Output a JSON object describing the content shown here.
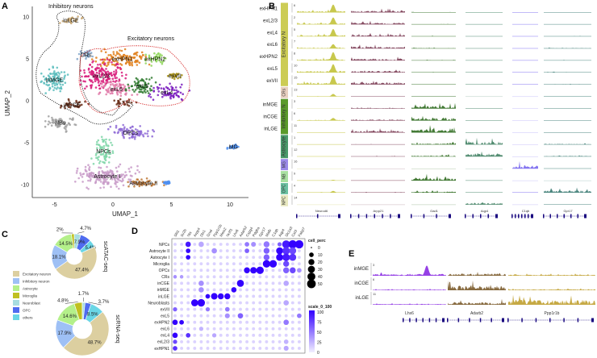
{
  "panels": {
    "a": "A",
    "b": "B",
    "c": "C",
    "d": "D",
    "e": "E"
  },
  "chart_data": [
    {
      "type": "scatter",
      "panel": "A",
      "xlabel": "UMAP_1",
      "ylabel": "UMAP_2",
      "xlim": [
        -7,
        11.5
      ],
      "ylim": [
        -11.5,
        11
      ],
      "xticks": [
        "-5",
        "0",
        "5",
        "10"
      ],
      "yticks": [
        "10",
        "5",
        "0",
        "-5",
        "-10"
      ],
      "annotations": {
        "inhibitory": "Inhibitory neurons",
        "excitatory": "Excitatory neurons"
      },
      "clusters": [
        {
          "name": "inLGE",
          "color": "#c8a66f",
          "x": -3.6,
          "y": 9.6,
          "sx": 0.8,
          "sy": 0.5,
          "label": "inLGE"
        },
        {
          "name": "CRs",
          "color": "#7fa3c8",
          "x": -2.3,
          "y": 5.5,
          "sx": 0.6,
          "sy": 0.4,
          "label": "CRs"
        },
        {
          "name": "exHPN1",
          "color": "#e07f1a",
          "x": 0.8,
          "y": 5.0,
          "sx": 2.0,
          "sy": 1.0,
          "label": "exHPN1"
        },
        {
          "name": "exHPN2",
          "color": "#8fd65a",
          "x": 3.6,
          "y": 5.0,
          "sx": 1.0,
          "sy": 0.7,
          "label": "exHPN2"
        },
        {
          "name": "exVII",
          "color": "#a8900f",
          "x": 5.3,
          "y": 3.0,
          "sx": 0.5,
          "sy": 0.4,
          "label": "exVII"
        },
        {
          "name": "exL2/3",
          "color": "#d81b7a",
          "x": -1.0,
          "y": 3.0,
          "sx": 1.8,
          "sy": 1.5,
          "label": "exL2/3"
        },
        {
          "name": "exL6",
          "color": "#e07aa8",
          "x": 0.3,
          "y": 1.4,
          "sx": 1.3,
          "sy": 1.0,
          "label": "exL6"
        },
        {
          "name": "exL5",
          "color": "#2f7a2f",
          "x": 2.5,
          "y": 1.8,
          "sx": 1.2,
          "sy": 0.9,
          "label": "exL5"
        },
        {
          "name": "exL4",
          "color": "#7b1fc0",
          "x": 4.6,
          "y": 1.0,
          "sx": 1.5,
          "sy": 0.8,
          "label": "exL4"
        },
        {
          "name": "inMGE",
          "color": "#5bbdbd",
          "x": -5.0,
          "y": 2.5,
          "sx": 1.1,
          "sy": 1.5,
          "label": "inMGE"
        },
        {
          "name": "inCGE",
          "color": "#6b2f1a",
          "x": -3.5,
          "y": -0.5,
          "sx": 1.2,
          "sy": 0.5,
          "label": "inCGE"
        },
        {
          "name": "inCGE-2",
          "color": "#6b2f1a",
          "x": 0.8,
          "y": -0.2,
          "sx": 0.9,
          "sy": 0.4,
          "label": ""
        },
        {
          "name": "NBs",
          "color": "#a0a0a0",
          "x": -4.5,
          "y": -2.6,
          "sx": 1.2,
          "sy": 0.8,
          "label": "NBs"
        },
        {
          "name": "OPCs",
          "color": "#8e6ad6",
          "x": 1.5,
          "y": -3.8,
          "sx": 1.7,
          "sy": 0.8,
          "label": "OPCs"
        },
        {
          "name": "NPCs",
          "color": "#7fd6a8",
          "x": -0.8,
          "y": -6.0,
          "sx": 0.8,
          "sy": 1.5,
          "label": "NPCs"
        },
        {
          "name": "Astrocyte I",
          "color": "#c89ac8",
          "x": -0.5,
          "y": -9.0,
          "sx": 2.5,
          "sy": 1.2,
          "label": "Astrocyte I"
        },
        {
          "name": "Astrocyte II",
          "color": "#c07a3a",
          "x": 2.6,
          "y": -9.8,
          "sx": 1.5,
          "sy": 0.5,
          "label": "Astrocyte II"
        },
        {
          "name": "MG",
          "color": "#4f8fef",
          "x": 10.3,
          "y": -5.5,
          "sx": 0.5,
          "sy": 0.3,
          "label": "MG"
        },
        {
          "name": "MG-2",
          "color": "#4f8fef",
          "x": 4.6,
          "y": -9.8,
          "sx": 0.3,
          "sy": 0.2,
          "label": ""
        }
      ]
    },
    {
      "type": "area",
      "panel": "B",
      "genes": [
        "Neurod6",
        "Arpp21",
        "Gad1",
        "Aqp4",
        "C1qb",
        "Gpr17"
      ],
      "gene_colors": [
        "#c2c23a",
        "#7a3a52",
        "#2e6a1e",
        "#3f7f62",
        "#7766ee",
        "#3a7a72"
      ],
      "groups": [
        {
          "label": "Excitatory N",
          "color": "#cccc55",
          "tracks": 7
        },
        {
          "label": "CRs",
          "color": "#e8cfc0",
          "tracks": 1
        },
        {
          "label": "Inhibitory N",
          "color": "#5a9a2a",
          "tracks": 3
        },
        {
          "label": "Astrocyte",
          "color": "#4a9a6a",
          "tracks": 2
        },
        {
          "label": "MG",
          "color": "#9a8ae8",
          "tracks": 1
        },
        {
          "label": "NB",
          "color": "#a8e0a0",
          "tracks": 1
        },
        {
          "label": "OPC",
          "color": "#6ac0a0",
          "tracks": 1
        },
        {
          "label": "NPC",
          "color": "#e8e8c0",
          "tracks": 1
        }
      ],
      "tracks": [
        {
          "name": "exHPN1",
          "scale": "6",
          "levels": [
            0.9,
            0.5,
            0.1,
            0.02,
            0.02,
            0.05
          ]
        },
        {
          "name": "exL2/3",
          "scale": "2",
          "levels": [
            0.8,
            0.45,
            0.1,
            0.03,
            0.02,
            0.05
          ]
        },
        {
          "name": "exL4",
          "scale": "5",
          "levels": [
            0.85,
            0.4,
            0.1,
            0.02,
            0.02,
            0.08
          ]
        },
        {
          "name": "exL6",
          "scale": "7",
          "levels": [
            0.5,
            0.5,
            0.15,
            0.02,
            0.05,
            0.15
          ]
        },
        {
          "name": "exHPN2",
          "scale": "8",
          "levels": [
            0.95,
            0.45,
            0.08,
            0.02,
            0.02,
            0.1
          ]
        },
        {
          "name": "exL5",
          "scale": "10",
          "levels": [
            0.95,
            0.45,
            0.08,
            0.02,
            0.02,
            0.1
          ]
        },
        {
          "name": "exVII",
          "scale": "15",
          "levels": [
            1.0,
            0.55,
            0.05,
            0.02,
            0.02,
            0.12
          ]
        },
        {
          "name": "",
          "scale": "13",
          "levels": [
            0.3,
            0.05,
            0.05,
            0.0,
            0.0,
            0.02
          ]
        },
        {
          "name": "inMGE",
          "scale": "3",
          "levels": [
            0.0,
            0.15,
            0.7,
            0.02,
            0.0,
            0.02
          ]
        },
        {
          "name": "inCGE",
          "scale": "6",
          "levels": [
            0.3,
            0.3,
            0.75,
            0.02,
            0.0,
            0.02
          ]
        },
        {
          "name": "inLGE",
          "scale": "11",
          "levels": [
            0.02,
            0.5,
            0.95,
            0.02,
            0.0,
            0.02
          ]
        },
        {
          "name": "",
          "scale": "1",
          "levels": [
            0.02,
            0.1,
            0.3,
            0.85,
            0.0,
            0.2
          ]
        },
        {
          "name": "",
          "scale": "12",
          "levels": [
            0.02,
            0.1,
            0.3,
            0.85,
            0.0,
            0.2
          ]
        },
        {
          "name": "",
          "scale": "16",
          "levels": [
            0.0,
            0.0,
            0.0,
            0.0,
            0.9,
            0.05
          ]
        },
        {
          "name": "",
          "scale": "9",
          "levels": [
            0.1,
            0.05,
            0.8,
            0.05,
            0.0,
            0.0
          ]
        },
        {
          "name": "",
          "scale": "4",
          "levels": [
            0.2,
            0.1,
            0.3,
            0.05,
            0.05,
            0.6
          ]
        },
        {
          "name": "",
          "scale": "14",
          "levels": [
            0.0,
            0.0,
            0.0,
            0.5,
            0.0,
            0.05
          ]
        }
      ]
    },
    {
      "type": "pie",
      "panel": "C",
      "legend": [
        "Excitatory neuron",
        "Inhibitory neuron",
        "Astrocyte",
        "Microglia",
        "Neuroblast",
        "OPC",
        "others"
      ],
      "colors": [
        "#dccfa0",
        "#9ec0f5",
        "#b4f08a",
        "#c0c020",
        "#a8dde0",
        "#4f6cf0",
        "#6ad6e6"
      ],
      "donuts": [
        {
          "title": "scATAC-seq",
          "values": {
            "Excitatory neuron": 47.4,
            "Inhibitory neuron": 18.1,
            "Astrocyte": 14.5,
            "Microglia": 2,
            "Neuroblast": 4.7,
            "OPC": 7.9,
            "others": 5.4
          },
          "labels": {
            "Excitatory neuron": "47.4%",
            "Inhibitory neuron": "18.1%",
            "Astrocyte": "14.5%",
            "Microglia": "2%",
            "Neuroblast": "4.7%",
            "OPC": "7.9%",
            "others": "5.4%"
          }
        },
        {
          "title": "scRNA-seq",
          "values": {
            "Excitatory neuron": 48.7,
            "Inhibitory neuron": 17.9,
            "Astrocyte": 14.6,
            "Microglia": 4.8,
            "Neuroblast": 1.7,
            "OPC": 3.7,
            "others": 8.5
          },
          "labels": {
            "Excitatory neuron": "48.7%",
            "Inhibitory neuron": "17.9%",
            "Astrocyte": "14.6%",
            "Microglia": "4.8%",
            "Neuroblast": "1.7%",
            "OPC": "3.7%",
            "others": "8.5%"
          }
        }
      ]
    },
    {
      "type": "scatter",
      "subtype": "dotplot",
      "panel": "D",
      "genes": [
        "Slit1",
        "Sv2b",
        "Nts",
        "Arpp4",
        "Dlx1",
        "Gnal",
        "Ppp1r1b",
        "Meis2",
        "Nr2f1",
        "Lhx6",
        "Adarb2",
        "Cspg4",
        "Pdgfra",
        "Gpr17",
        "Mafb",
        "C1qb",
        "Aqp4",
        "Slc1a3",
        "Cst3",
        "Fabp7"
      ],
      "rows": [
        "NPCs",
        "Astrocyte II",
        "Astrocyte I",
        "Microglia",
        "OPCs",
        "CRs",
        "inCGE",
        "inMGE",
        "inLGE",
        "Neuroblasts",
        "exVII",
        "exL5",
        "exHPN2",
        "exL6",
        "exL4",
        "exL2/3",
        "exHPN1"
      ],
      "default": {
        "pct": 3,
        "scale": 12
      },
      "cells": [
        [
          "NPCs",
          "Nts",
          15,
          90
        ],
        [
          "NPCs",
          "Dlx1",
          15,
          30
        ],
        [
          "NPCs",
          "Cspg4",
          10,
          50
        ],
        [
          "NPCs",
          "Pdgfra",
          12,
          40
        ],
        [
          "NPCs",
          "Mafb",
          20,
          50
        ],
        [
          "NPCs",
          "Aqp4",
          8,
          60
        ],
        [
          "NPCs",
          "Slc1a3",
          40,
          90
        ],
        [
          "NPCs",
          "Cst3",
          45,
          100
        ],
        [
          "NPCs",
          "Fabp7",
          45,
          100
        ],
        [
          "Astrocyte II",
          "Nts",
          10,
          100
        ],
        [
          "Astrocyte II",
          "Ppp1r1b",
          15,
          40
        ],
        [
          "Astrocyte II",
          "Cspg4",
          10,
          60
        ],
        [
          "Astrocyte II",
          "Mafb",
          20,
          60
        ],
        [
          "Astrocyte II",
          "Aqp4",
          30,
          100
        ],
        [
          "Astrocyte II",
          "Slc1a3",
          35,
          80
        ],
        [
          "Astrocyte II",
          "Cst3",
          30,
          70
        ],
        [
          "Astrocyte I",
          "Nts",
          10,
          100
        ],
        [
          "Astrocyte I",
          "Mafb",
          20,
          60
        ],
        [
          "Astrocyte I",
          "Aqp4",
          30,
          100
        ],
        [
          "Astrocyte I",
          "Slc1a3",
          35,
          90
        ],
        [
          "Astrocyte I",
          "Cst3",
          30,
          80
        ],
        [
          "Microglia",
          "Mafb",
          35,
          100
        ],
        [
          "Microglia",
          "C1qb",
          35,
          100
        ],
        [
          "Microglia",
          "Slc1a3",
          20,
          70
        ],
        [
          "OPCs",
          "Cspg4",
          20,
          100
        ],
        [
          "OPCs",
          "Pdgfra",
          25,
          100
        ],
        [
          "OPCs",
          "Gpr17",
          35,
          100
        ],
        [
          "OPCs",
          "Slc1a3",
          20,
          60
        ],
        [
          "OPCs",
          "Cst3",
          20,
          70
        ],
        [
          "OPCs",
          "Fabp7",
          10,
          40
        ],
        [
          "CRs",
          "Slit1",
          5,
          40
        ],
        [
          "CRs",
          "Sv2b",
          5,
          35
        ],
        [
          "inCGE",
          "Dlx1",
          15,
          40
        ],
        [
          "inCGE",
          "Adarb2",
          30,
          100
        ],
        [
          "inCGE",
          "Slc1a3",
          15,
          30
        ],
        [
          "inMGE",
          "Dlx1",
          15,
          40
        ],
        [
          "inMGE",
          "Lhx6",
          15,
          100
        ],
        [
          "inLGE",
          "Gnal",
          10,
          100
        ],
        [
          "inLGE",
          "Ppp1r1b",
          25,
          100
        ],
        [
          "inLGE",
          "Meis2",
          20,
          100
        ],
        [
          "inLGE",
          "Nr2f1",
          20,
          100
        ],
        [
          "Neuroblasts",
          "Arpp4",
          30,
          100
        ],
        [
          "Neuroblasts",
          "Dlx1",
          35,
          100
        ],
        [
          "Neuroblasts",
          "Slc1a3",
          15,
          30
        ],
        [
          "exVII",
          "Slit1",
          8,
          60
        ],
        [
          "exVII",
          "Gnal",
          8,
          50
        ],
        [
          "exVII",
          "Nr2f1",
          10,
          50
        ],
        [
          "exL5",
          "Adarb2",
          15,
          60
        ],
        [
          "exL5",
          "Nr2f1",
          12,
          40
        ],
        [
          "exL5",
          "Fabp7",
          10,
          50
        ],
        [
          "exHPN2",
          "Slit1",
          15,
          100
        ],
        [
          "exHPN2",
          "Sv2b",
          10,
          100
        ],
        [
          "exHPN2",
          "Slc1a3",
          15,
          50
        ],
        [
          "exL6",
          "Dlx1",
          8,
          25
        ],
        [
          "exL4",
          "Slit1",
          15,
          100
        ],
        [
          "exL4",
          "Nts",
          10,
          80
        ],
        [
          "exL4",
          "Ppp1r1b",
          8,
          30
        ],
        [
          "exL2/3",
          "Slit1",
          8,
          70
        ],
        [
          "exL2/3",
          "Slc1a3",
          10,
          25
        ],
        [
          "exHPN1",
          "Slit1",
          10,
          80
        ],
        [
          "exHPN1",
          "Slc1a3",
          12,
          30
        ]
      ],
      "size_legend": {
        "title": "cell_perc",
        "values": [
          "0",
          "10",
          "20",
          "30",
          "40",
          "50"
        ]
      },
      "color_legend": {
        "title": "scale_0_100",
        "values": [
          "100",
          "75",
          "50",
          "25",
          "0"
        ],
        "low": "#f2efff",
        "high": "#3300ff"
      }
    },
    {
      "type": "area",
      "panel": "E",
      "genes": [
        "Lhx6",
        "Adarb2",
        "Ppp1r1b"
      ],
      "gene_colors": [
        "#8a2be2",
        "#7a5a2a",
        "#c0a030"
      ],
      "tracks": [
        {
          "name": "inMGE",
          "scale": "3",
          "levels": [
            0.85,
            0.4,
            0.2
          ]
        },
        {
          "name": "inCGE",
          "scale": "6",
          "levels": [
            0.15,
            0.85,
            0.2
          ]
        },
        {
          "name": "inLGE",
          "scale": "11",
          "levels": [
            0.15,
            0.5,
            0.95
          ]
        }
      ]
    }
  ]
}
